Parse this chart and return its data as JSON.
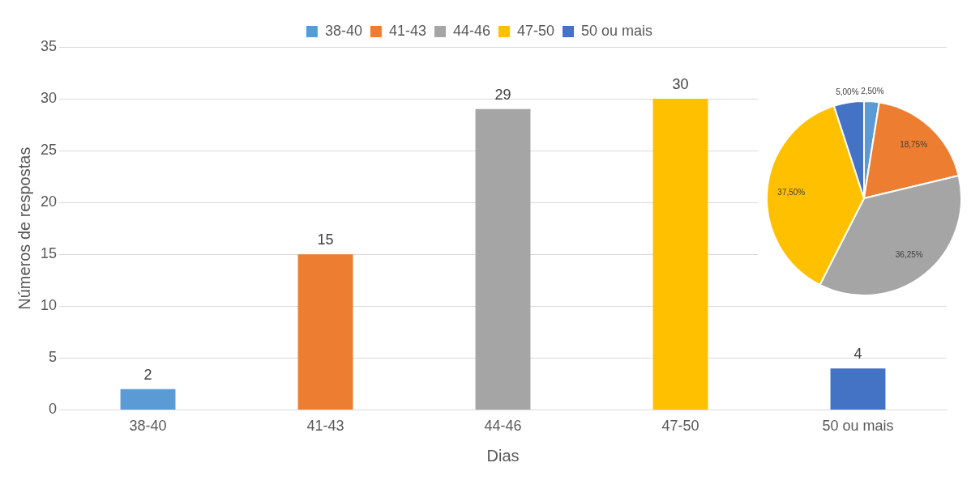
{
  "chart_data": [
    {
      "type": "bar",
      "xlabel": "Dias",
      "ylabel": "Números de respostas",
      "categories": [
        "38-40",
        "41-43",
        "44-46",
        "47-50",
        "50 ou mais"
      ],
      "series": [
        {
          "name": "38-40",
          "color": "#5b9bd5",
          "values": [
            2,
            null,
            null,
            null,
            null
          ]
        },
        {
          "name": "41-43",
          "color": "#ed7d31",
          "values": [
            null,
            15,
            null,
            null,
            null
          ]
        },
        {
          "name": "44-46",
          "color": "#a5a5a5",
          "values": [
            null,
            null,
            29,
            null,
            null
          ]
        },
        {
          "name": "47-50",
          "color": "#ffc000",
          "values": [
            null,
            null,
            null,
            30,
            null
          ]
        },
        {
          "name": "50 ou mais",
          "color": "#4472c4",
          "values": [
            null,
            null,
            null,
            null,
            4
          ]
        }
      ],
      "ylim": [
        0,
        35
      ],
      "yticks": [
        0,
        5,
        10,
        15,
        20,
        25,
        30,
        35
      ],
      "grid": "y",
      "legend": "top",
      "data_labels": true
    },
    {
      "type": "pie",
      "categories": [
        null,
        null,
        null,
        null,
        null
      ],
      "values": [
        2.5,
        18.75,
        36.25,
        37.5,
        5
      ],
      "colors": [
        "#5b9bd5",
        "#ed7d31",
        "#a5a5a5",
        "#ffc000",
        "#4472c4"
      ],
      "value_labels": [
        "2,50%",
        "18,75%",
        "36,25%",
        "37,50%",
        "5,00%"
      ]
    }
  ]
}
